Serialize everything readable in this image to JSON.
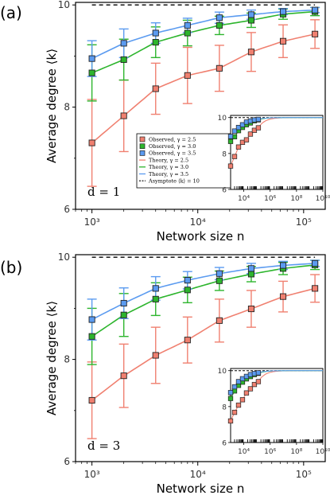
{
  "chart_data": [
    {
      "type": "line",
      "panel_label": "(a)",
      "annotation": "d = 1",
      "xlabel": "Network size n",
      "ylabel": "Average degree ⟨k⟩",
      "xscale": "log",
      "xlim": [
        700,
        160000
      ],
      "ylim": [
        6,
        10.05
      ],
      "x_ticks": [
        1000,
        10000,
        100000
      ],
      "x_tick_labels": [
        "10³",
        "10⁴",
        "10⁵"
      ],
      "y_ticks": [
        6,
        8,
        10
      ],
      "y_tick_labels": [
        "6",
        "8",
        "10"
      ],
      "asymptote": 10,
      "grid": false,
      "legend": {
        "placement": "inside lower-right",
        "entries": [
          "Observed, γ = 2.5",
          "Observed, γ = 3.0",
          "Observed, γ = 3.5",
          "Theory, γ = 2.5",
          "Theory, γ = 3.0",
          "Theory, γ = 3.5",
          "Asymptote ⟨k⟩ = 10"
        ]
      },
      "x": [
        1000,
        2000,
        4000,
        8000,
        16000,
        32000,
        64000,
        128000
      ],
      "series": [
        {
          "name": "Observed, γ = 2.5",
          "color": "#f08070",
          "values": [
            7.3,
            7.83,
            8.36,
            8.62,
            8.76,
            9.08,
            9.29,
            9.43
          ],
          "err": [
            0.85,
            0.7,
            0.5,
            0.55,
            0.45,
            0.38,
            0.32,
            0.28
          ]
        },
        {
          "name": "Observed, γ = 3.0",
          "color": "#2db52d",
          "values": [
            8.67,
            8.93,
            9.27,
            9.45,
            9.6,
            9.7,
            9.82,
            9.87
          ],
          "err": [
            0.55,
            0.4,
            0.3,
            0.25,
            0.18,
            0.14,
            0.1,
            0.08
          ]
        },
        {
          "name": "Observed, γ = 3.5",
          "color": "#5b9bf0",
          "values": [
            8.95,
            9.25,
            9.45,
            9.6,
            9.75,
            9.81,
            9.87,
            9.9
          ],
          "err": [
            0.35,
            0.28,
            0.2,
            0.14,
            0.11,
            0.09,
            0.06,
            0.05
          ]
        }
      ],
      "inset": {
        "xlim": [
          1000,
          10000000000
        ],
        "ylim": [
          6,
          10
        ],
        "x_tick_labels": [
          "10⁴",
          "10⁶",
          "10⁸",
          "10¹⁰"
        ],
        "y_tick_labels": [
          "6",
          "8",
          "10"
        ]
      }
    },
    {
      "type": "line",
      "panel_label": "(b)",
      "annotation": "d = 3",
      "xlabel": "Network size n",
      "ylabel": "Average degree ⟨k⟩",
      "xscale": "log",
      "xlim": [
        700,
        160000
      ],
      "ylim": [
        6,
        10.05
      ],
      "x_ticks": [
        1000,
        10000,
        100000
      ],
      "x_tick_labels": [
        "10³",
        "10⁴",
        "10⁵"
      ],
      "y_ticks": [
        6,
        8,
        10
      ],
      "y_tick_labels": [
        "6",
        "8",
        "10"
      ],
      "asymptote": 10,
      "grid": false,
      "x": [
        1000,
        2000,
        4000,
        8000,
        16000,
        32000,
        64000,
        128000
      ],
      "series": [
        {
          "name": "Observed, γ = 2.5",
          "color": "#f08070",
          "values": [
            7.2,
            7.68,
            8.08,
            8.38,
            8.76,
            8.99,
            9.23,
            9.39
          ],
          "err": [
            0.75,
            0.62,
            0.55,
            0.45,
            0.42,
            0.36,
            0.3,
            0.27
          ]
        },
        {
          "name": "Observed, γ = 3.0",
          "color": "#2db52d",
          "values": [
            8.45,
            8.87,
            9.18,
            9.36,
            9.54,
            9.67,
            9.78,
            9.85
          ],
          "err": [
            0.55,
            0.42,
            0.32,
            0.25,
            0.19,
            0.15,
            0.12,
            0.09
          ]
        },
        {
          "name": "Observed, γ = 3.5",
          "color": "#5b9bf0",
          "values": [
            8.78,
            9.1,
            9.39,
            9.55,
            9.68,
            9.78,
            9.84,
            9.88
          ],
          "err": [
            0.4,
            0.3,
            0.23,
            0.17,
            0.12,
            0.1,
            0.08,
            0.06
          ]
        }
      ],
      "inset": {
        "xlim": [
          1000,
          10000000000
        ],
        "ylim": [
          6,
          10
        ],
        "x_tick_labels": [
          "10⁴",
          "10⁶",
          "10⁸",
          "10¹⁰"
        ],
        "y_tick_labels": [
          "6",
          "8",
          "10"
        ]
      }
    }
  ]
}
